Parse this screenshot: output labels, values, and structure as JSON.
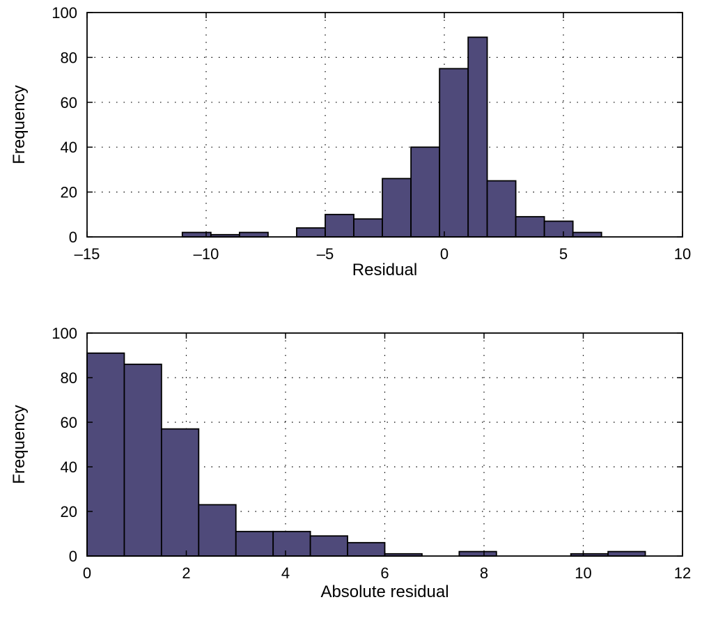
{
  "chart_data": [
    {
      "type": "bar",
      "title": "",
      "xlabel": "Residual",
      "ylabel": "Frequency",
      "xlim": [
        -15,
        10
      ],
      "ylim": [
        0,
        100
      ],
      "xticks": [
        -15,
        -10,
        -5,
        0,
        5,
        10
      ],
      "xtick_labels": [
        "–15",
        "–10",
        "–5",
        "0",
        "5",
        "10"
      ],
      "yticks": [
        0,
        20,
        40,
        60,
        80,
        100
      ],
      "ytick_labels": [
        "0",
        "20",
        "40",
        "60",
        "80",
        "100"
      ],
      "grid": true,
      "bar_color": "#4f4a7a",
      "bins": [
        {
          "x0": -11.0,
          "x1": -9.8,
          "value": 2
        },
        {
          "x0": -9.8,
          "x1": -8.6,
          "value": 1
        },
        {
          "x0": -8.6,
          "x1": -7.4,
          "value": 2
        },
        {
          "x0": -6.2,
          "x1": -5.0,
          "value": 4
        },
        {
          "x0": -5.0,
          "x1": -3.8,
          "value": 10
        },
        {
          "x0": -3.8,
          "x1": -2.6,
          "value": 8
        },
        {
          "x0": -2.6,
          "x1": -1.4,
          "value": 26
        },
        {
          "x0": -1.4,
          "x1": -0.2,
          "value": 40
        },
        {
          "x0": -0.2,
          "x1": 1.0,
          "value": 75
        },
        {
          "x0": 1.0,
          "x1": 1.8,
          "value": 89
        },
        {
          "x0": 1.8,
          "x1": 3.0,
          "value": 25
        },
        {
          "x0": 3.0,
          "x1": 4.2,
          "value": 9
        },
        {
          "x0": 4.2,
          "x1": 5.4,
          "value": 7
        },
        {
          "x0": 5.4,
          "x1": 6.6,
          "value": 2
        }
      ]
    },
    {
      "type": "bar",
      "title": "",
      "xlabel": "Absolute residual",
      "ylabel": "Frequency",
      "xlim": [
        0,
        12
      ],
      "ylim": [
        0,
        100
      ],
      "xticks": [
        0,
        2,
        4,
        6,
        8,
        10,
        12
      ],
      "xtick_labels": [
        "0",
        "2",
        "4",
        "6",
        "8",
        "10",
        "12"
      ],
      "yticks": [
        0,
        20,
        40,
        60,
        80,
        100
      ],
      "ytick_labels": [
        "0",
        "20",
        "40",
        "60",
        "80",
        "100"
      ],
      "grid": true,
      "bar_color": "#4f4a7a",
      "bins": [
        {
          "x0": 0.0,
          "x1": 0.75,
          "value": 91
        },
        {
          "x0": 0.75,
          "x1": 1.5,
          "value": 86
        },
        {
          "x0": 1.5,
          "x1": 2.25,
          "value": 57
        },
        {
          "x0": 2.25,
          "x1": 3.0,
          "value": 23
        },
        {
          "x0": 3.0,
          "x1": 3.75,
          "value": 11
        },
        {
          "x0": 3.75,
          "x1": 4.5,
          "value": 11
        },
        {
          "x0": 4.5,
          "x1": 5.25,
          "value": 9
        },
        {
          "x0": 5.25,
          "x1": 6.0,
          "value": 6
        },
        {
          "x0": 6.0,
          "x1": 6.75,
          "value": 1
        },
        {
          "x0": 7.5,
          "x1": 8.25,
          "value": 2
        },
        {
          "x0": 9.75,
          "x1": 10.5,
          "value": 1
        },
        {
          "x0": 10.5,
          "x1": 11.25,
          "value": 2
        }
      ]
    }
  ]
}
